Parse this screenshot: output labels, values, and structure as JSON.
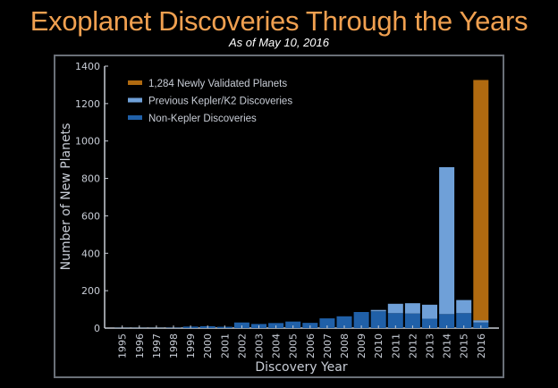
{
  "header": {
    "title": "Exoplanet Discoveries Through the Years",
    "subtitle": "As of May 10, 2016"
  },
  "chart_data": {
    "type": "bar",
    "stacked": true,
    "xlabel": "Discovery Year",
    "ylabel": "Number of New Planets",
    "ylim": [
      0,
      1400
    ],
    "yticks": [
      0,
      200,
      400,
      600,
      800,
      1000,
      1200,
      1400
    ],
    "legend_position": "top-left",
    "categories": [
      "1995",
      "1996",
      "1997",
      "1998",
      "1999",
      "2000",
      "2001",
      "2002",
      "2003",
      "2004",
      "2005",
      "2006",
      "2007",
      "2008",
      "2009",
      "2010",
      "2011",
      "2012",
      "2013",
      "2014",
      "2015",
      "2016"
    ],
    "series": [
      {
        "name": "Non-Kepler Discoveries",
        "color": "#2060a8",
        "values": [
          1,
          1,
          1,
          2,
          8,
          10,
          7,
          30,
          22,
          27,
          35,
          28,
          52,
          63,
          86,
          90,
          80,
          78,
          50,
          75,
          80,
          30
        ]
      },
      {
        "name": "Previous Kepler/K2 Discoveries",
        "color": "#6fa0d8",
        "values": [
          0,
          0,
          0,
          0,
          0,
          0,
          0,
          0,
          0,
          0,
          0,
          0,
          0,
          0,
          0,
          7,
          50,
          55,
          75,
          785,
          70,
          12
        ]
      },
      {
        "name": "1,284 Newly Validated Planets",
        "color": "#b06a10",
        "values": [
          0,
          0,
          0,
          0,
          0,
          0,
          0,
          0,
          0,
          0,
          0,
          0,
          0,
          0,
          0,
          0,
          0,
          0,
          0,
          0,
          0,
          1284
        ]
      }
    ]
  }
}
